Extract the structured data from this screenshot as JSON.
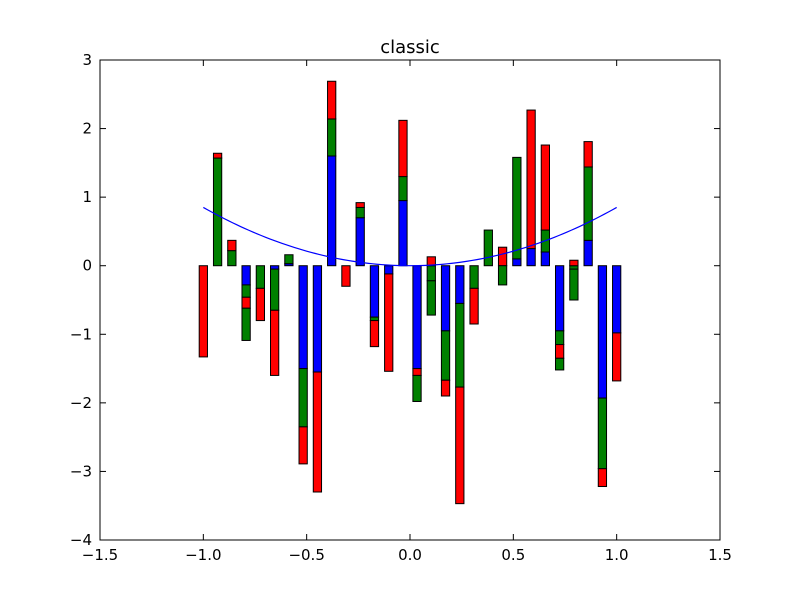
{
  "chart_data": {
    "type": "bar",
    "title": "classic",
    "xlabel": "",
    "ylabel": "",
    "xlim": [
      -1.5,
      1.5
    ],
    "ylim": [
      -4,
      3
    ],
    "xticks": [
      -1.5,
      -1.0,
      -0.5,
      0.0,
      0.5,
      1.0,
      1.5
    ],
    "xtick_labels": [
      "−1.5",
      "−1.0",
      "−0.5",
      "0.0",
      "0.5",
      "1.0",
      "1.5"
    ],
    "yticks": [
      -4,
      -3,
      -2,
      -1,
      0,
      1,
      2,
      3
    ],
    "ytick_labels": [
      "−4",
      "−3",
      "−2",
      "−1",
      "0",
      "1",
      "2",
      "3"
    ],
    "grid": false,
    "stacked": true,
    "bar_width": 0.04,
    "x": [
      -1.0,
      -0.931,
      -0.862,
      -0.793,
      -0.724,
      -0.655,
      -0.586,
      -0.517,
      -0.448,
      -0.379,
      -0.31,
      -0.241,
      -0.172,
      -0.103,
      -0.034,
      0.034,
      0.103,
      0.172,
      0.241,
      0.31,
      0.379,
      0.448,
      0.517,
      0.586,
      0.655,
      0.724,
      0.793,
      0.862,
      0.931,
      1.0
    ],
    "series": [
      {
        "color": "#0000ff",
        "values": [
          0.0,
          0.0,
          0.0,
          -0.28,
          0.0,
          -0.05,
          0.03,
          -1.5,
          -1.55,
          1.6,
          0.0,
          0.7,
          -0.75,
          -0.12,
          0.95,
          -1.5,
          0.0,
          -0.95,
          -0.55,
          0.0,
          0.0,
          0.0,
          0.1,
          0.25,
          0.2,
          -0.95,
          0.0,
          0.37,
          -1.93,
          -0.98
        ]
      },
      {
        "color": "#008000",
        "values": [
          0.0,
          1.57,
          0.22,
          -0.18,
          -0.33,
          -0.6,
          0.13,
          -0.85,
          0.0,
          0.54,
          0.0,
          0.15,
          -0.05,
          0.0,
          0.35,
          0.0,
          -0.22,
          -0.72,
          -1.22,
          -0.33,
          0.52,
          0.0,
          1.48,
          0.0,
          0.32,
          -0.2,
          -0.05,
          1.07,
          -1.03,
          0.0
        ]
      },
      {
        "color": "#ff0000",
        "values": [
          -1.33,
          0.07,
          0.15,
          -0.16,
          -0.47,
          -0.95,
          0.0,
          -0.54,
          -1.75,
          0.55,
          -0.3,
          0.07,
          -0.38,
          -1.42,
          0.82,
          -0.1,
          0.13,
          -0.23,
          -1.7,
          -0.52,
          0.0,
          0.27,
          0.0,
          2.02,
          1.24,
          -0.2,
          0.08,
          0.37,
          -0.26,
          -0.7
        ]
      },
      {
        "color": "#008000",
        "values": [
          0.0,
          0.0,
          0.0,
          -0.47,
          0.0,
          0.0,
          0.0,
          0.0,
          0.0,
          0.0,
          0.0,
          0.0,
          0.0,
          0.0,
          0.0,
          -0.38,
          -0.5,
          0.0,
          0.0,
          0.0,
          0.0,
          -0.28,
          0.0,
          0.0,
          0.0,
          -0.17,
          -0.45,
          0.0,
          0.0,
          0.0
        ]
      }
    ],
    "line": {
      "color": "#0000ff",
      "x_range": [
        -1.0,
        1.0
      ],
      "function": "0.85*x^2"
    }
  }
}
